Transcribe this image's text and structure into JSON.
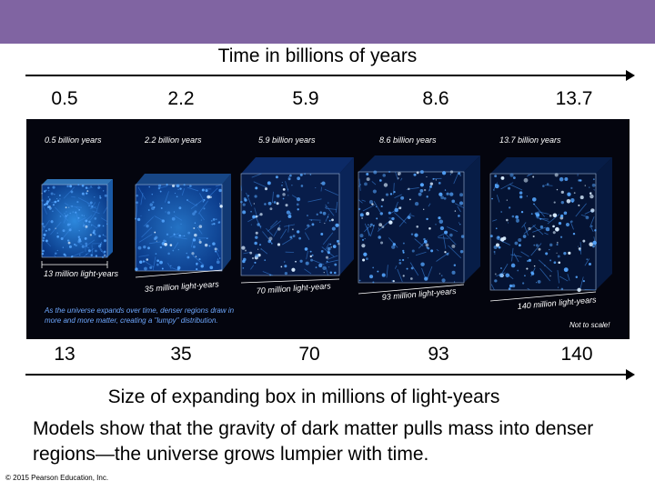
{
  "header": {
    "accent_color": "#8064a2"
  },
  "time_axis": {
    "title": "Time in billions of years",
    "values": [
      "0.5",
      "2.2",
      "5.9",
      "8.6",
      "13.7"
    ]
  },
  "figure": {
    "panels": [
      {
        "time_label": "0.5 billion years",
        "size_label": "13 million light-years"
      },
      {
        "time_label": "2.2 billion years",
        "size_label": "35 million light-years"
      },
      {
        "time_label": "5.9 billion years",
        "size_label": "70 million light-years"
      },
      {
        "time_label": "8.6 billion years",
        "size_label": "93 million light-years"
      },
      {
        "time_label": "13.7 billion years",
        "size_label": "140 million light-years"
      }
    ],
    "note_line1": "As the universe expands over time, denser regions draw in",
    "note_line2": "more and more matter, creating a \"lumpy\" distribution.",
    "scale_note": "Not to scale!"
  },
  "size_axis": {
    "values": [
      "13",
      "35",
      "70",
      "93",
      "140"
    ],
    "caption": "Size of expanding box in millions of light-years"
  },
  "body_text": "Models show that the gravity of dark matter pulls mass into denser regions—the universe grows lumpier with time.",
  "copyright": "© 2015 Pearson Education, Inc."
}
